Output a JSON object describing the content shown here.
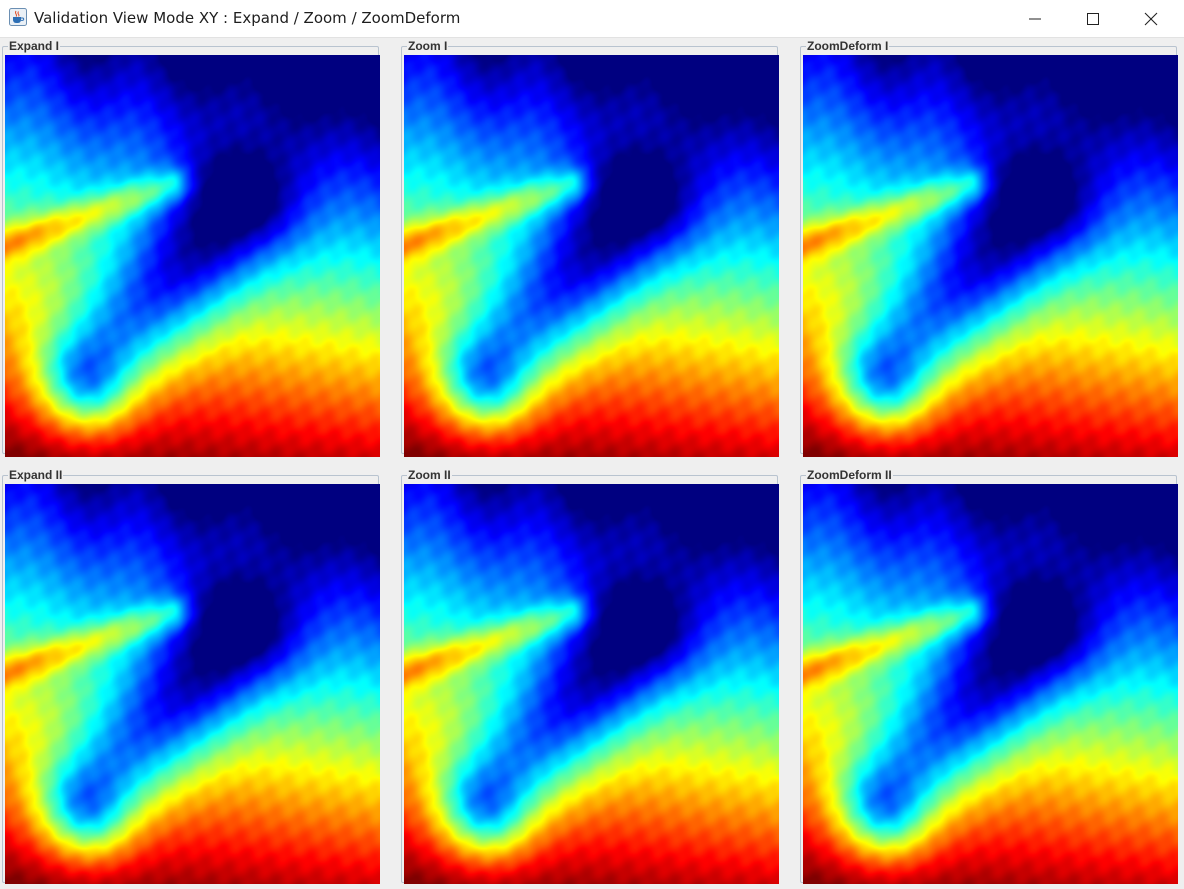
{
  "window": {
    "title": "Validation View Mode XY : Expand / Zoom / ZoomDeform",
    "app_icon": "java-coffee-cup-icon",
    "controls": {
      "minimize_icon": "minimize-icon",
      "maximize_icon": "maximize-icon",
      "close_icon": "close-icon"
    }
  },
  "panels": [
    {
      "title": "Expand I"
    },
    {
      "title": "Zoom I"
    },
    {
      "title": "ZoomDeform I"
    },
    {
      "title": "Expand II"
    },
    {
      "title": "Zoom II"
    },
    {
      "title": "ZoomDeform II"
    }
  ],
  "colormap": {
    "name": "jet",
    "stops": [
      "#0000ff",
      "#00ffff",
      "#00ff80",
      "#00ff00",
      "#ffff00",
      "#ff8000",
      "#ff0000"
    ]
  }
}
